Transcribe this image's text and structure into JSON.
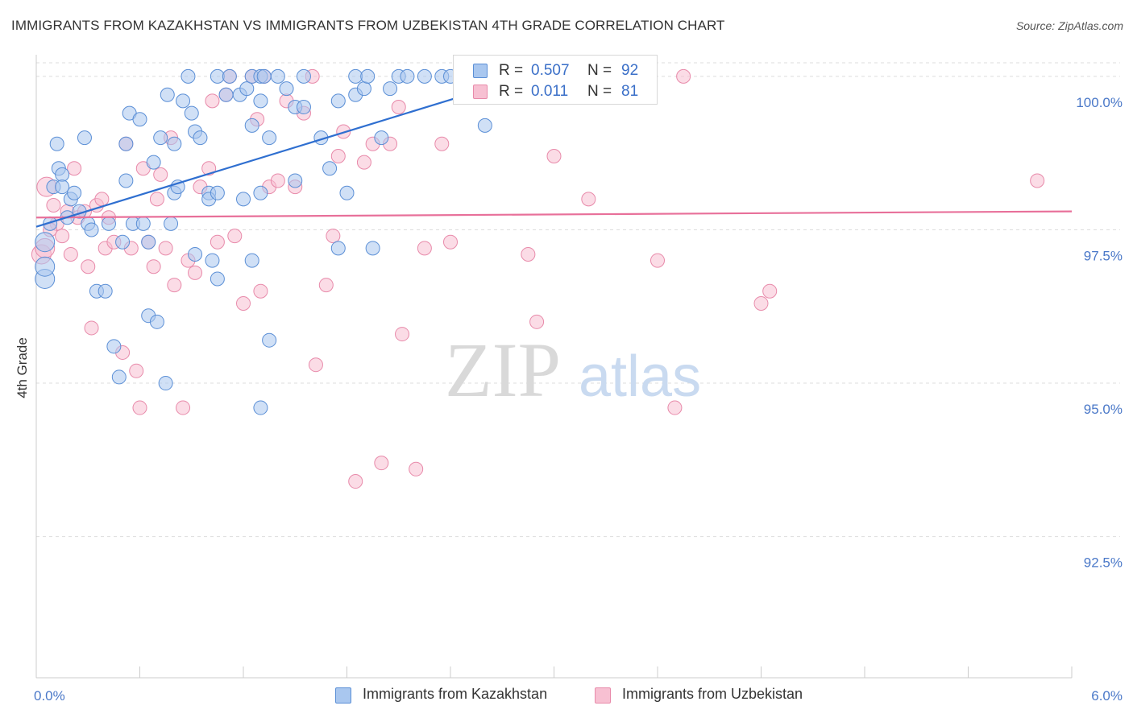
{
  "title": "IMMIGRANTS FROM KAZAKHSTAN VS IMMIGRANTS FROM UZBEKISTAN 4TH GRADE CORRELATION CHART",
  "source": "Source: ZipAtlas.com",
  "watermark": {
    "zip": "ZIP",
    "atlas": "atlas"
  },
  "legend": {
    "rows": [
      {
        "r_label": "R =",
        "r_value": "0.507",
        "n_label": "N =",
        "n_value": "92"
      },
      {
        "r_label": "R =",
        "r_value": "0.011",
        "n_label": "N =",
        "n_value": "81"
      }
    ]
  },
  "bottom_legend": {
    "items": [
      "Immigrants from Kazakhstan",
      "Immigrants from Uzbekistan"
    ]
  },
  "colors": {
    "kaz_fill": "#a9c7ef",
    "kaz_stroke": "#5b8fd6",
    "kaz_line": "#2f6fd0",
    "uzb_fill": "#f7c0d2",
    "uzb_stroke": "#e88aaa",
    "uzb_line": "#e8709a",
    "grid": "#dddddd",
    "tick_text": "#4a78c8"
  },
  "chart_data": {
    "type": "scatter",
    "title": "IMMIGRANTS FROM KAZAKHSTAN VS IMMIGRANTS FROM UZBEKISTAN 4TH GRADE CORRELATION CHART",
    "xlabel": "",
    "ylabel": "4th Grade",
    "xlim": [
      0.0,
      6.0
    ],
    "ylim": [
      90.2,
      100.3
    ],
    "x_tick_labels": [
      "0.0%",
      "6.0%"
    ],
    "y_ticks": [
      92.5,
      95.0,
      97.5,
      100.0
    ],
    "y_tick_labels": [
      "92.5%",
      "95.0%",
      "97.5%",
      "100.0%"
    ],
    "grid": true,
    "series": [
      {
        "name": "Immigrants from Kazakhstan",
        "R": 0.507,
        "N": 92,
        "trend": {
          "x": [
            0.0,
            2.9
          ],
          "y": [
            97.55,
            100.05
          ]
        },
        "points": [
          [
            0.05,
            97.3
          ],
          [
            0.05,
            96.7
          ],
          [
            0.05,
            96.9
          ],
          [
            0.08,
            97.6
          ],
          [
            0.1,
            98.2
          ],
          [
            0.12,
            98.9
          ],
          [
            0.13,
            98.5
          ],
          [
            0.15,
            98.4
          ],
          [
            0.15,
            98.2
          ],
          [
            0.18,
            97.7
          ],
          [
            0.2,
            98.0
          ],
          [
            0.22,
            98.1
          ],
          [
            0.25,
            97.8
          ],
          [
            0.28,
            99.0
          ],
          [
            0.3,
            97.6
          ],
          [
            0.32,
            97.5
          ],
          [
            0.35,
            96.5
          ],
          [
            0.4,
            96.5
          ],
          [
            0.42,
            97.6
          ],
          [
            0.45,
            95.6
          ],
          [
            0.48,
            95.1
          ],
          [
            0.5,
            97.3
          ],
          [
            0.52,
            98.3
          ],
          [
            0.52,
            98.9
          ],
          [
            0.54,
            99.4
          ],
          [
            0.56,
            97.6
          ],
          [
            0.6,
            99.3
          ],
          [
            0.62,
            97.6
          ],
          [
            0.65,
            97.3
          ],
          [
            0.68,
            98.6
          ],
          [
            0.65,
            96.1
          ],
          [
            0.72,
            99.0
          ],
          [
            0.7,
            96.0
          ],
          [
            0.75,
            95.0
          ],
          [
            0.76,
            99.7
          ],
          [
            0.78,
            97.6
          ],
          [
            0.8,
            98.1
          ],
          [
            0.8,
            98.9
          ],
          [
            0.82,
            98.2
          ],
          [
            0.85,
            99.6
          ],
          [
            0.88,
            100.0
          ],
          [
            0.9,
            99.4
          ],
          [
            0.92,
            99.1
          ],
          [
            0.92,
            97.1
          ],
          [
            0.95,
            99.0
          ],
          [
            1.0,
            98.1
          ],
          [
            1.0,
            98.0
          ],
          [
            1.02,
            97.0
          ],
          [
            1.05,
            98.1
          ],
          [
            1.05,
            96.7
          ],
          [
            1.05,
            100.0
          ],
          [
            1.1,
            99.7
          ],
          [
            1.12,
            100.0
          ],
          [
            1.18,
            99.7
          ],
          [
            1.2,
            98.0
          ],
          [
            1.22,
            99.8
          ],
          [
            1.25,
            99.2
          ],
          [
            1.25,
            100.0
          ],
          [
            1.3,
            100.0
          ],
          [
            1.32,
            100.0
          ],
          [
            1.3,
            98.1
          ],
          [
            1.3,
            99.6
          ],
          [
            1.25,
            97.0
          ],
          [
            1.3,
            94.6
          ],
          [
            1.35,
            95.7
          ],
          [
            1.35,
            99.0
          ],
          [
            1.4,
            100.0
          ],
          [
            1.45,
            99.8
          ],
          [
            1.5,
            99.5
          ],
          [
            1.55,
            99.5
          ],
          [
            1.55,
            100.0
          ],
          [
            1.5,
            98.3
          ],
          [
            1.65,
            99.0
          ],
          [
            1.7,
            98.5
          ],
          [
            1.75,
            99.6
          ],
          [
            1.75,
            97.2
          ],
          [
            1.8,
            98.1
          ],
          [
            1.85,
            99.7
          ],
          [
            1.85,
            100.0
          ],
          [
            1.9,
            99.8
          ],
          [
            1.92,
            100.0
          ],
          [
            1.95,
            97.2
          ],
          [
            2.0,
            99.0
          ],
          [
            2.05,
            99.8
          ],
          [
            2.1,
            100.0
          ],
          [
            2.15,
            100.0
          ],
          [
            2.25,
            100.0
          ],
          [
            2.35,
            100.0
          ],
          [
            2.4,
            100.0
          ],
          [
            2.5,
            99.8
          ],
          [
            2.6,
            99.2
          ],
          [
            2.7,
            100.0
          ]
        ]
      },
      {
        "name": "Immigrants from Uzbekistan",
        "R": 0.011,
        "N": 81,
        "trend": {
          "x": [
            0.0,
            6.0
          ],
          "y": [
            97.7,
            97.8
          ]
        },
        "points": [
          [
            0.03,
            97.1
          ],
          [
            0.05,
            97.2
          ],
          [
            0.06,
            98.2
          ],
          [
            0.1,
            97.9
          ],
          [
            0.12,
            97.6
          ],
          [
            0.15,
            97.4
          ],
          [
            0.18,
            97.8
          ],
          [
            0.2,
            97.1
          ],
          [
            0.22,
            98.5
          ],
          [
            0.24,
            97.7
          ],
          [
            0.28,
            97.8
          ],
          [
            0.3,
            96.9
          ],
          [
            0.32,
            95.9
          ],
          [
            0.35,
            97.9
          ],
          [
            0.38,
            98.0
          ],
          [
            0.4,
            97.2
          ],
          [
            0.42,
            97.7
          ],
          [
            0.45,
            97.3
          ],
          [
            0.5,
            95.5
          ],
          [
            0.52,
            98.9
          ],
          [
            0.55,
            97.2
          ],
          [
            0.58,
            95.2
          ],
          [
            0.6,
            94.6
          ],
          [
            0.62,
            98.5
          ],
          [
            0.65,
            97.3
          ],
          [
            0.68,
            96.9
          ],
          [
            0.7,
            98.0
          ],
          [
            0.72,
            98.4
          ],
          [
            0.75,
            97.2
          ],
          [
            0.78,
            99.0
          ],
          [
            0.8,
            96.6
          ],
          [
            0.85,
            94.6
          ],
          [
            0.88,
            97.0
          ],
          [
            0.92,
            96.8
          ],
          [
            0.95,
            98.2
          ],
          [
            1.0,
            98.5
          ],
          [
            1.02,
            99.6
          ],
          [
            1.05,
            97.3
          ],
          [
            1.1,
            99.7
          ],
          [
            1.12,
            100.0
          ],
          [
            1.15,
            97.4
          ],
          [
            1.2,
            96.3
          ],
          [
            1.25,
            100.0
          ],
          [
            1.28,
            99.3
          ],
          [
            1.3,
            96.5
          ],
          [
            1.32,
            100.0
          ],
          [
            1.35,
            98.2
          ],
          [
            1.4,
            98.3
          ],
          [
            1.45,
            99.6
          ],
          [
            1.5,
            98.2
          ],
          [
            1.55,
            99.4
          ],
          [
            1.6,
            100.0
          ],
          [
            1.62,
            95.3
          ],
          [
            1.68,
            96.6
          ],
          [
            1.72,
            97.4
          ],
          [
            1.75,
            98.7
          ],
          [
            1.78,
            99.1
          ],
          [
            1.85,
            93.4
          ],
          [
            1.9,
            98.6
          ],
          [
            1.95,
            98.9
          ],
          [
            2.0,
            93.7
          ],
          [
            2.05,
            98.9
          ],
          [
            2.1,
            99.5
          ],
          [
            2.12,
            95.8
          ],
          [
            2.2,
            93.6
          ],
          [
            2.25,
            97.2
          ],
          [
            2.35,
            98.9
          ],
          [
            2.4,
            97.3
          ],
          [
            2.5,
            99.7
          ],
          [
            2.75,
            100.0
          ],
          [
            2.85,
            97.1
          ],
          [
            2.9,
            96.0
          ],
          [
            3.0,
            98.7
          ],
          [
            3.2,
            98.0
          ],
          [
            3.6,
            97.0
          ],
          [
            3.7,
            94.6
          ],
          [
            3.75,
            100.0
          ],
          [
            4.2,
            96.3
          ],
          [
            4.25,
            96.5
          ],
          [
            5.8,
            98.3
          ],
          [
            0.08,
            97.5
          ]
        ]
      }
    ]
  }
}
